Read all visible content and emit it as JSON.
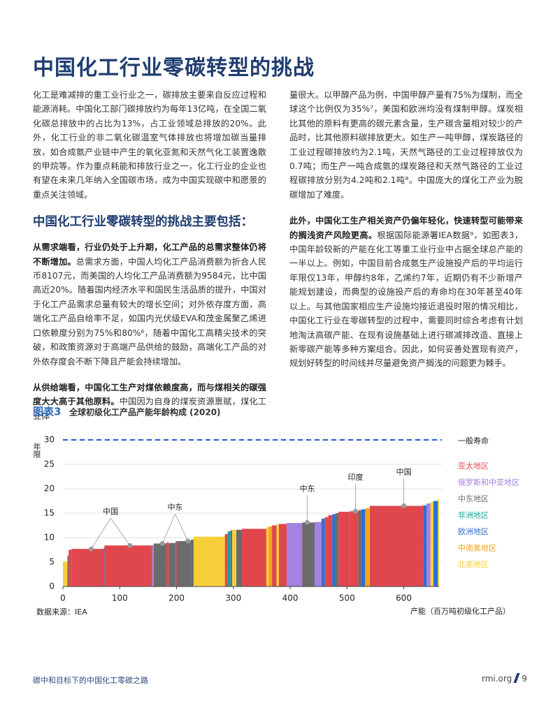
{
  "title": "中国化工行业零碳转型的挑战",
  "left_column": {
    "p1": "化工是难减排的重工业行业之一，碳排放主要来自反应过程和能源消耗。中国化工部门碳排放约为每年13亿吨，在全国二氧化碳总排放中的占比为13%，占工业领域总排放的20%。此外，化工行业的非二氧化碳温室气体排放也将增加碳当量排放，如合成氨产业链中产生的氧化亚氮和天然气化工装置逸散的甲烷等。作为重点耗能和排放行业之一，化工行业的企业也有望在未来几年纳入全国碳市场，成为中国实现碳中和愿景的重点关注领域。",
    "heading": "中国化工行业零碳转型的挑战主要包括：",
    "p2": {
      "bold": "从需求端看，行业仍处于上升期，化工产品的总需求整体仍将不断增加。",
      "text": "总需求方面，中国人均化工产品消费额为折合人民币8107元，而美国的人均化工产品消费额为9584元，比中国高近20%。随着国内经济水平和国民生活品质的提升，中国对于化工产品需求总量有较大的增长空间；对外依存度方面，高端化工产品自给率不足，如国内光伏级EVA和茂金属聚乙烯进口依赖度分别为75%和80%⁶，随着中国化工高精尖技术的突破，和政策资源对于高端产品供给的鼓励，高端化工产品的对外依存度会不断下降且产能会持续增加。"
    },
    "p3": {
      "bold": "从供给端看，中国化工生产对煤依赖度高，而与煤相关的碳强度大大高于其他原料。",
      "text": "中国因为自身的煤炭资源禀赋，煤化工业体"
    }
  },
  "right_column": {
    "p1": "量很大。以甲醇产品为例，中国甲醇产量有75%为煤制，而全球这个比例仅为35%⁷，美国和欧洲均没有煤制甲醇。煤炭相比其他的原料有更高的碳元素含量，生产碳含量相对较少的产品时，比其他原料碳排放更大。如生产一吨甲醇，煤炭路径的工业过程碳排放约为2.1吨，天然气路径的工业过程排放仅为0.7吨；而生产一吨合成氨的煤炭路径和天然气路径的工业过程碳排放分别为4.2吨和2.1吨⁸。中国庞大的煤化工产业为脱碳增加了难度。",
    "p2": {
      "bold": "此外，中国化工生产相关资产仍偏年轻化，快速转型可能带来的搁浅资产风险更高。",
      "text": "根据国际能源署IEA数据⁹，如图表3，中国年龄较新的产能在化工等重工业行业中占据全球总产能的一半以上。例如，中国目前合成氨生产设施投产后的平均运行年限仅13年，甲醇约8年，乙烯约7年，近期仍有不少新增产能规划建设，而典型的设施投产后的寿命均在30年甚至40年以上。与其他国家相应生产设施均接近退役时限的情况相比，中国化工行业在零碳转型的过程中，需要同时综合考虑有计划地淘汰高碳产能、在现有设施基础上进行碳减排改造、直接上新零碳产能等多种方案组合。因此，如何妥善处置现有资产，规划好转型的时间线并尽量避免资产搁浅的问题更为棘手。"
    }
  },
  "figure": {
    "label": "图表3",
    "caption": "全球初级化工产品产能年龄构成 (2020)",
    "source": "数据来源：IEA"
  },
  "chart_data": {
    "type": "variable-width-bar",
    "x_label": "产能（百万吨初级化工产品）",
    "y_label": "年限",
    "xlim": [
      0,
      662
    ],
    "xticks": [
      0,
      100,
      200,
      300,
      400,
      500,
      600
    ],
    "ylim": [
      0,
      30
    ],
    "yticks": [
      0,
      5,
      10,
      15,
      20,
      25,
      30
    ],
    "grid": true,
    "reference_line": {
      "value": 30,
      "label": "一般寿命",
      "color": "#2456d6"
    },
    "series": [
      {
        "name": "亚太地区",
        "color": "#e0474c",
        "x0": [
          10,
          15,
          73,
          182,
          198,
          285,
          315,
          368,
          380,
          461,
          467,
          485,
          505,
          540
        ],
        "x1": [
          15,
          72,
          157,
          186,
          200,
          290,
          358,
          376,
          394,
          467,
          474,
          505,
          520,
          634
        ],
        "values": [
          7.5,
          7.7,
          8.4,
          9.0,
          9.2,
          10.7,
          11.8,
          12.5,
          12.8,
          14.2,
          14.6,
          15.3,
          15.4,
          16.5
        ]
      },
      {
        "name": "俄罗斯和中亚地区",
        "color": "#a582e0",
        "x0": [
          157,
          394,
          443,
          640
        ],
        "x1": [
          160,
          421,
          455,
          647
        ],
        "values": [
          8.5,
          13.0,
          13.2,
          17.0
        ]
      },
      {
        "name": "中东地区",
        "color": "#6b6b6b",
        "x0": [
          8,
          160,
          186,
          200,
          225,
          295,
          305,
          421,
          480,
          520
        ],
        "x1": [
          10,
          182,
          198,
          225,
          230,
          298,
          315,
          443,
          485,
          525
        ],
        "values": [
          6.3,
          8.8,
          8.9,
          9.3,
          9.6,
          11.5,
          11.6,
          13.1,
          15.0,
          15.6
        ]
      },
      {
        "name": "非洲地区",
        "color": "#14a39a",
        "x0": [
          290
        ],
        "x1": [
          295
        ],
        "values": [
          11.3
        ]
      },
      {
        "name": "欧洲地区",
        "color": "#2f6fd0",
        "x0": [
          72,
          455,
          474,
          525,
          634,
          652
        ],
        "x1": [
          73,
          461,
          480,
          532,
          640,
          660
        ],
        "values": [
          8.0,
          13.9,
          14.8,
          15.8,
          16.6,
          17.5
        ]
      },
      {
        "name": "中南美地区",
        "color": "#f5a31a",
        "x0": [
          362,
          532
        ],
        "x1": [
          368,
          540
        ],
        "values": [
          12.3,
          16.0
        ]
      },
      {
        "name": "北美地区",
        "color": "#f8cf3a",
        "x0": [
          0,
          230,
          298,
          358,
          376,
          647,
          660
        ],
        "x1": [
          8,
          285,
          305,
          362,
          380,
          652,
          662
        ],
        "values": [
          5.1,
          10.2,
          11.6,
          12.1,
          12.7,
          17.3,
          17.9
        ]
      }
    ],
    "annotations": [
      {
        "label": "中国",
        "x": [
          50,
          118
        ],
        "y": [
          7.7,
          8.4
        ]
      },
      {
        "label": "中东",
        "x": [
          175,
          220
        ],
        "y": [
          8.8,
          9.3
        ]
      },
      {
        "label": "中东",
        "x": [
          430
        ],
        "y": [
          13.1
        ]
      },
      {
        "label": "印度",
        "x": [
          515
        ],
        "y": [
          15.4
        ]
      },
      {
        "label": "中国",
        "x": [
          600
        ],
        "y": [
          16.5
        ]
      }
    ]
  },
  "footer": {
    "left": "碳中和目标下的中国化工零碳之路",
    "site": "rmi.org",
    "page": "9"
  }
}
